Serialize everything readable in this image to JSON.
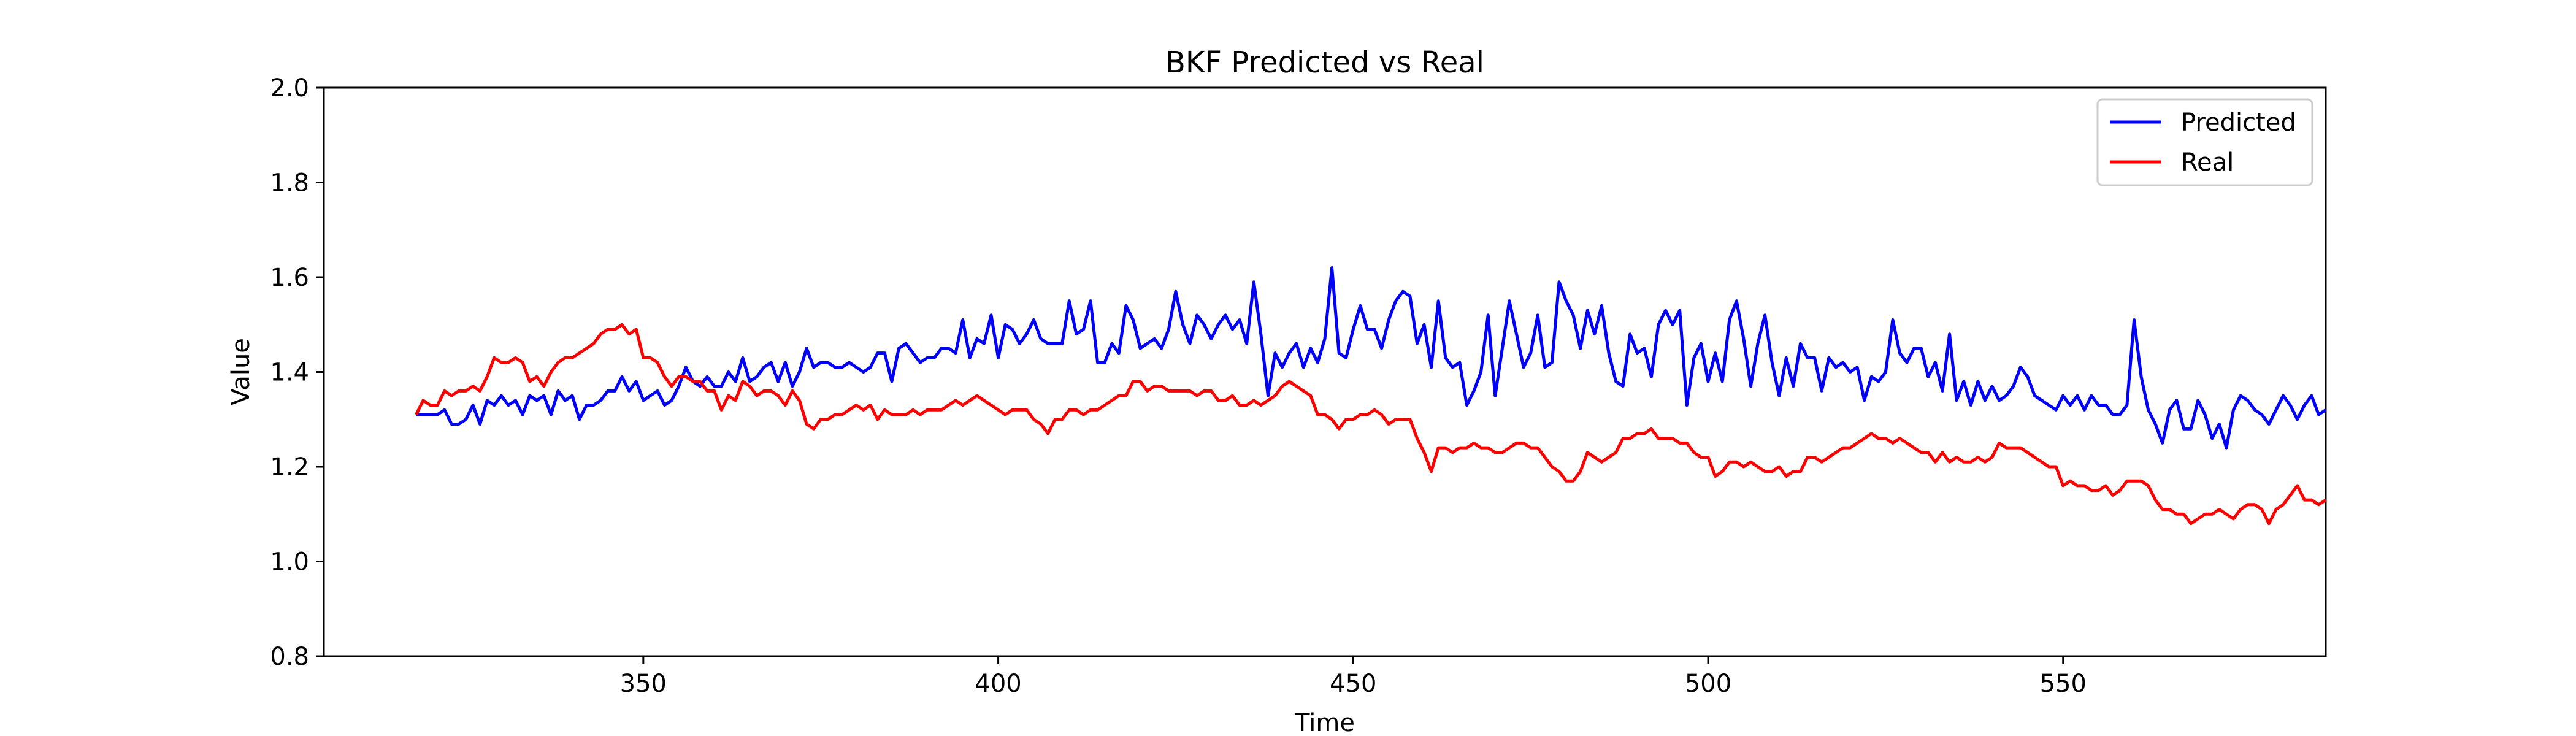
{
  "chart_data": {
    "type": "line",
    "title": "BKF Predicted vs Real",
    "xlabel": "Time",
    "ylabel": "Value",
    "xlim": [
      305,
      587
    ],
    "ylim": [
      0.8,
      2.0
    ],
    "xticks": [
      350,
      400,
      450,
      500,
      550
    ],
    "yticks": [
      0.8,
      1.0,
      1.2,
      1.4,
      1.6,
      1.8,
      2.0
    ],
    "xtick_labels": [
      "350",
      "400",
      "450",
      "500",
      "550"
    ],
    "ytick_labels": [
      "0.8",
      "1.0",
      "1.2",
      "1.4",
      "1.6",
      "1.8",
      "2.0"
    ],
    "grid": false,
    "legend_position": "top-right",
    "x_start": 318,
    "x_step": 1,
    "series": [
      {
        "name": "Predicted",
        "color": "#0000ff",
        "values": [
          1.31,
          1.31,
          1.31,
          1.31,
          1.32,
          1.29,
          1.29,
          1.3,
          1.33,
          1.29,
          1.34,
          1.33,
          1.35,
          1.33,
          1.34,
          1.31,
          1.35,
          1.34,
          1.35,
          1.31,
          1.36,
          1.34,
          1.35,
          1.3,
          1.33,
          1.33,
          1.34,
          1.36,
          1.36,
          1.39,
          1.36,
          1.38,
          1.34,
          1.35,
          1.36,
          1.33,
          1.34,
          1.37,
          1.41,
          1.38,
          1.37,
          1.39,
          1.37,
          1.37,
          1.4,
          1.38,
          1.43,
          1.38,
          1.39,
          1.41,
          1.42,
          1.38,
          1.42,
          1.37,
          1.4,
          1.45,
          1.41,
          1.42,
          1.42,
          1.41,
          1.41,
          1.42,
          1.41,
          1.4,
          1.41,
          1.44,
          1.44,
          1.38,
          1.45,
          1.46,
          1.44,
          1.42,
          1.43,
          1.43,
          1.45,
          1.45,
          1.44,
          1.51,
          1.43,
          1.47,
          1.46,
          1.52,
          1.43,
          1.5,
          1.49,
          1.46,
          1.48,
          1.51,
          1.47,
          1.46,
          1.46,
          1.46,
          1.55,
          1.48,
          1.49,
          1.55,
          1.42,
          1.42,
          1.46,
          1.44,
          1.54,
          1.51,
          1.45,
          1.46,
          1.47,
          1.45,
          1.49,
          1.57,
          1.5,
          1.46,
          1.52,
          1.5,
          1.47,
          1.5,
          1.52,
          1.49,
          1.51,
          1.46,
          1.59,
          1.48,
          1.35,
          1.44,
          1.41,
          1.44,
          1.46,
          1.41,
          1.45,
          1.42,
          1.47,
          1.62,
          1.44,
          1.43,
          1.49,
          1.54,
          1.49,
          1.49,
          1.45,
          1.51,
          1.55,
          1.57,
          1.56,
          1.46,
          1.5,
          1.41,
          1.55,
          1.43,
          1.41,
          1.42,
          1.33,
          1.36,
          1.4,
          1.52,
          1.35,
          1.45,
          1.55,
          1.48,
          1.41,
          1.44,
          1.52,
          1.41,
          1.42,
          1.59,
          1.55,
          1.52,
          1.45,
          1.53,
          1.48,
          1.54,
          1.44,
          1.38,
          1.37,
          1.48,
          1.44,
          1.45,
          1.39,
          1.5,
          1.53,
          1.5,
          1.53,
          1.33,
          1.43,
          1.46,
          1.38,
          1.44,
          1.38,
          1.51,
          1.55,
          1.47,
          1.37,
          1.46,
          1.52,
          1.42,
          1.35,
          1.43,
          1.37,
          1.46,
          1.43,
          1.43,
          1.36,
          1.43,
          1.41,
          1.42,
          1.4,
          1.41,
          1.34,
          1.39,
          1.38,
          1.4,
          1.51,
          1.44,
          1.42,
          1.45,
          1.45,
          1.39,
          1.42,
          1.36,
          1.48,
          1.34,
          1.38,
          1.33,
          1.38,
          1.34,
          1.37,
          1.34,
          1.35,
          1.37,
          1.41,
          1.39,
          1.35,
          1.34,
          1.33,
          1.32,
          1.35,
          1.33,
          1.35,
          1.32,
          1.35,
          1.33,
          1.33,
          1.31,
          1.31,
          1.33,
          1.51,
          1.39,
          1.32,
          1.29,
          1.25,
          1.32,
          1.34,
          1.28,
          1.28,
          1.34,
          1.31,
          1.26,
          1.29,
          1.24,
          1.32,
          1.35,
          1.34,
          1.32,
          1.31,
          1.29,
          1.32,
          1.35,
          1.33,
          1.3,
          1.33,
          1.35,
          1.31,
          1.32
        ]
      },
      {
        "name": "Real",
        "color": "#ff0000",
        "values": [
          1.31,
          1.34,
          1.33,
          1.33,
          1.36,
          1.35,
          1.36,
          1.36,
          1.37,
          1.36,
          1.39,
          1.43,
          1.42,
          1.42,
          1.43,
          1.42,
          1.38,
          1.39,
          1.37,
          1.4,
          1.42,
          1.43,
          1.43,
          1.44,
          1.45,
          1.46,
          1.48,
          1.49,
          1.49,
          1.5,
          1.48,
          1.49,
          1.43,
          1.43,
          1.42,
          1.39,
          1.37,
          1.39,
          1.39,
          1.38,
          1.38,
          1.36,
          1.36,
          1.32,
          1.35,
          1.34,
          1.38,
          1.37,
          1.35,
          1.36,
          1.36,
          1.35,
          1.33,
          1.36,
          1.34,
          1.29,
          1.28,
          1.3,
          1.3,
          1.31,
          1.31,
          1.32,
          1.33,
          1.32,
          1.33,
          1.3,
          1.32,
          1.31,
          1.31,
          1.31,
          1.32,
          1.31,
          1.32,
          1.32,
          1.32,
          1.33,
          1.34,
          1.33,
          1.34,
          1.35,
          1.34,
          1.33,
          1.32,
          1.31,
          1.32,
          1.32,
          1.32,
          1.3,
          1.29,
          1.27,
          1.3,
          1.3,
          1.32,
          1.32,
          1.31,
          1.32,
          1.32,
          1.33,
          1.34,
          1.35,
          1.35,
          1.38,
          1.38,
          1.36,
          1.37,
          1.37,
          1.36,
          1.36,
          1.36,
          1.36,
          1.35,
          1.36,
          1.36,
          1.34,
          1.34,
          1.35,
          1.33,
          1.33,
          1.34,
          1.33,
          1.34,
          1.35,
          1.37,
          1.38,
          1.37,
          1.36,
          1.35,
          1.31,
          1.31,
          1.3,
          1.28,
          1.3,
          1.3,
          1.31,
          1.31,
          1.32,
          1.31,
          1.29,
          1.3,
          1.3,
          1.3,
          1.26,
          1.23,
          1.19,
          1.24,
          1.24,
          1.23,
          1.24,
          1.24,
          1.25,
          1.24,
          1.24,
          1.23,
          1.23,
          1.24,
          1.25,
          1.25,
          1.24,
          1.24,
          1.22,
          1.2,
          1.19,
          1.17,
          1.17,
          1.19,
          1.23,
          1.22,
          1.21,
          1.22,
          1.23,
          1.26,
          1.26,
          1.27,
          1.27,
          1.28,
          1.26,
          1.26,
          1.26,
          1.25,
          1.25,
          1.23,
          1.22,
          1.22,
          1.18,
          1.19,
          1.21,
          1.21,
          1.2,
          1.21,
          1.2,
          1.19,
          1.19,
          1.2,
          1.18,
          1.19,
          1.19,
          1.22,
          1.22,
          1.21,
          1.22,
          1.23,
          1.24,
          1.24,
          1.25,
          1.26,
          1.27,
          1.26,
          1.26,
          1.25,
          1.26,
          1.25,
          1.24,
          1.23,
          1.23,
          1.21,
          1.23,
          1.21,
          1.22,
          1.21,
          1.21,
          1.22,
          1.21,
          1.22,
          1.25,
          1.24,
          1.24,
          1.24,
          1.23,
          1.22,
          1.21,
          1.2,
          1.2,
          1.16,
          1.17,
          1.16,
          1.16,
          1.15,
          1.15,
          1.16,
          1.14,
          1.15,
          1.17,
          1.17,
          1.17,
          1.16,
          1.13,
          1.11,
          1.11,
          1.1,
          1.1,
          1.08,
          1.09,
          1.1,
          1.1,
          1.11,
          1.1,
          1.09,
          1.11,
          1.12,
          1.12,
          1.11,
          1.08,
          1.11,
          1.12,
          1.14,
          1.16,
          1.13,
          1.13,
          1.12,
          1.13
        ]
      }
    ]
  }
}
